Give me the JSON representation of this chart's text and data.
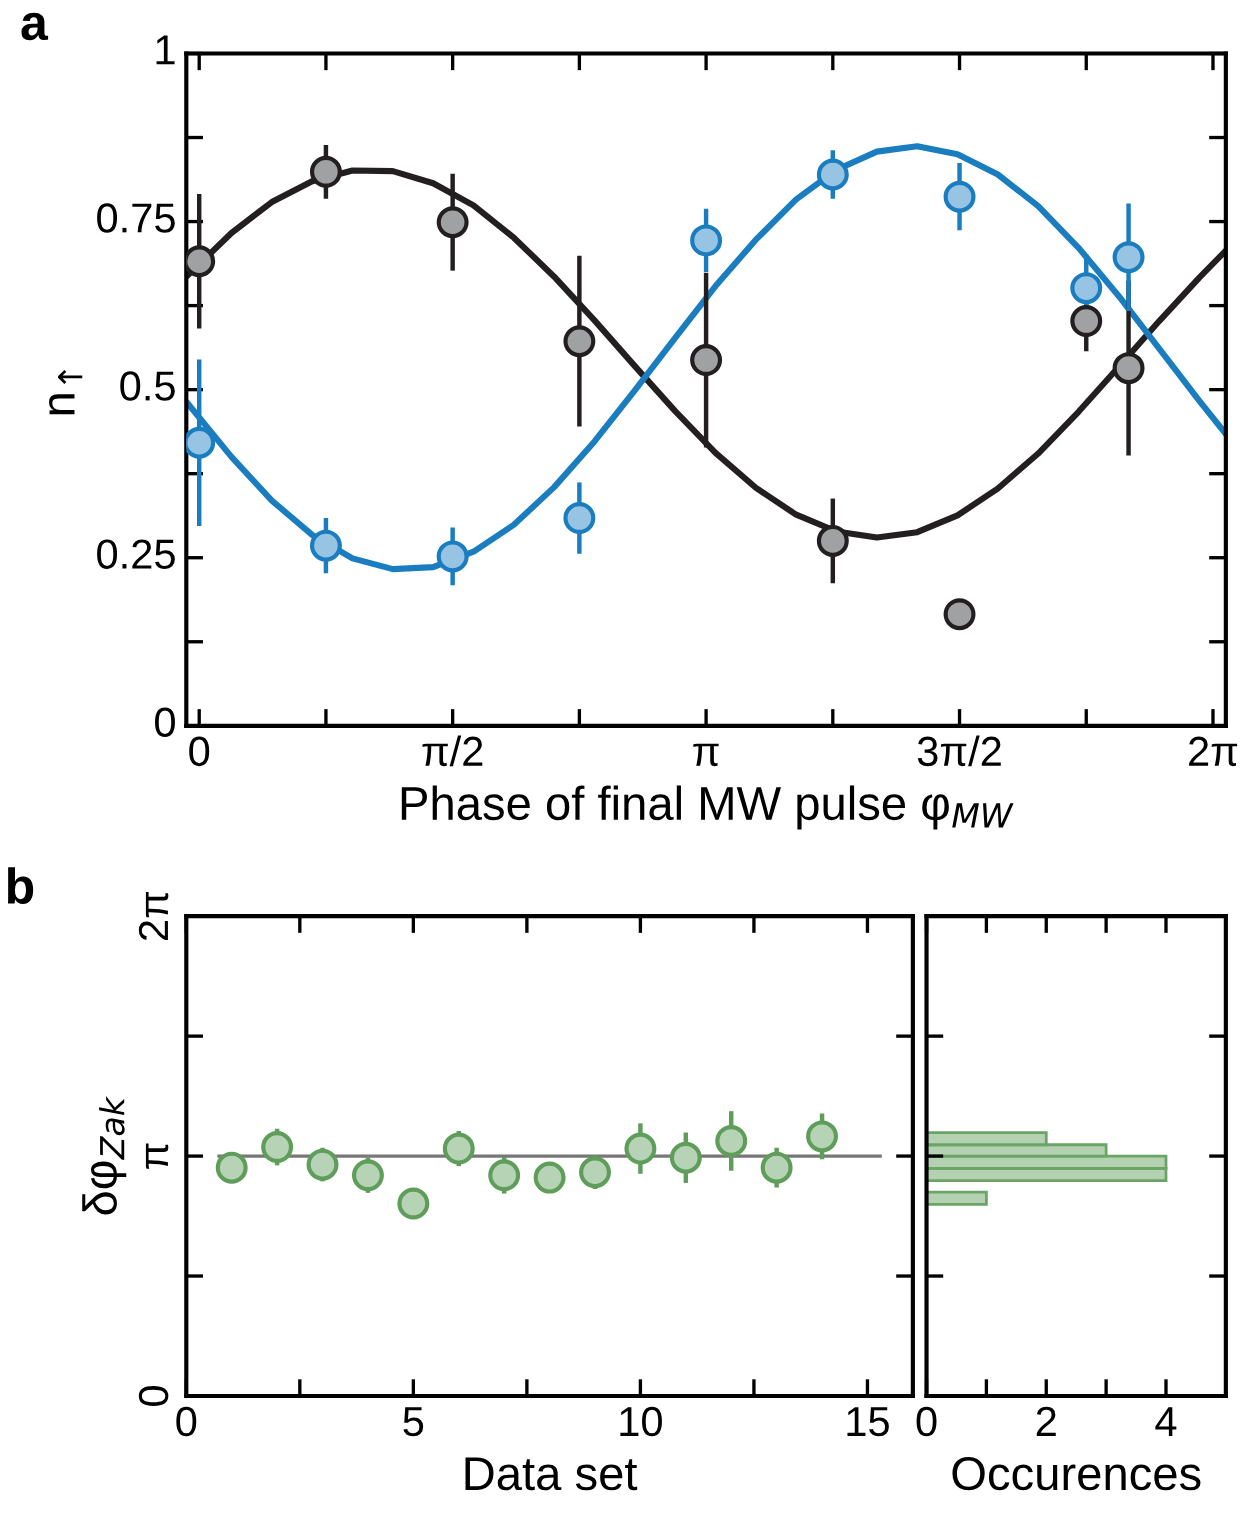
{
  "chart_data": [
    {
      "type": "scatter",
      "title": "a",
      "xlabel": "Phase of final MW pulse φ$_{MW}$",
      "ylabel": "n$_{↑}$",
      "xlim": [
        -0.08,
        6.363
      ],
      "ylim": [
        0,
        1
      ],
      "xticks": [
        0,
        {
          "value": 0.7854,
          "label": null
        },
        {
          "value": 1.5708,
          "label": "π/2"
        },
        {
          "value": 2.3562,
          "label": null
        },
        {
          "value": 3.1416,
          "label": "π"
        },
        {
          "value": 3.927,
          "label": null
        },
        {
          "value": 4.7124,
          "label": "3π/2"
        },
        {
          "value": 5.4978,
          "label": null
        },
        {
          "value": 6.2832,
          "label": "2π"
        }
      ],
      "yticks": [
        0,
        {
          "value": 0.125,
          "label": null
        },
        0.25,
        {
          "value": 0.375,
          "label": null
        },
        0.5,
        {
          "value": 0.625,
          "label": null
        },
        0.75,
        {
          "value": 0.875,
          "label": null
        },
        1
      ],
      "grid": false,
      "series": [
        {
          "type": "line",
          "marker": "none",
          "color": "#231f20",
          "x": [
            -0.08,
            0.2,
            0.45,
            0.7,
            0.95,
            1.2,
            1.45,
            1.7,
            1.95,
            2.2,
            2.45,
            2.7,
            2.95,
            3.2,
            3.45,
            3.7,
            3.95,
            4.2,
            4.45,
            4.7,
            4.95,
            5.2,
            5.45,
            5.7,
            5.95,
            6.2,
            6.36
          ],
          "values": [
            0.668,
            0.733,
            0.779,
            0.81,
            0.826,
            0.825,
            0.807,
            0.774,
            0.726,
            0.668,
            0.603,
            0.535,
            0.468,
            0.406,
            0.354,
            0.314,
            0.289,
            0.28,
            0.288,
            0.313,
            0.353,
            0.405,
            0.467,
            0.534,
            0.602,
            0.667,
            0.706
          ]
        },
        {
          "type": "line",
          "marker": "none",
          "color": "#1a7dc0",
          "x": [
            -0.08,
            0.2,
            0.45,
            0.7,
            0.95,
            1.2,
            1.45,
            1.7,
            1.95,
            2.2,
            2.45,
            2.7,
            2.95,
            3.2,
            3.45,
            3.7,
            3.95,
            4.2,
            4.45,
            4.7,
            4.95,
            5.2,
            5.45,
            5.7,
            5.95,
            6.2,
            6.36
          ],
          "values": [
            0.482,
            0.4,
            0.335,
            0.284,
            0.249,
            0.233,
            0.236,
            0.259,
            0.299,
            0.355,
            0.423,
            0.499,
            0.577,
            0.654,
            0.723,
            0.783,
            0.827,
            0.854,
            0.862,
            0.85,
            0.82,
            0.773,
            0.711,
            0.639,
            0.561,
            0.483,
            0.435
          ]
        },
        {
          "type": "scatter",
          "marker": "circle",
          "color": "#231f20",
          "x": [
            0,
            0.7854,
            1.5708,
            2.3562,
            3.1416,
            3.927,
            4.7124,
            5.4978,
            5.76
          ],
          "values": [
            0.691,
            0.824,
            0.749,
            0.572,
            0.544,
            0.275,
            0.166,
            0.602,
            0.532
          ],
          "errors": [
            0.1,
            0.04,
            0.072,
            0.127,
            0.13,
            0.063,
            0.02,
            0.045,
            0.13
          ]
        },
        {
          "type": "scatter",
          "marker": "circle",
          "color": "#1a7dc0",
          "x": [
            0,
            0.7854,
            1.5708,
            2.3562,
            3.1416,
            3.927,
            4.7124,
            5.4978,
            5.76
          ],
          "values": [
            0.421,
            0.268,
            0.252,
            0.309,
            0.722,
            0.82,
            0.787,
            0.651,
            0.697
          ],
          "errors": [
            0.124,
            0.041,
            0.043,
            0.053,
            0.047,
            0.036,
            0.05,
            0.05,
            0.08
          ]
        }
      ]
    },
    {
      "type": "scatter",
      "title": "b",
      "xlabel": "Data set",
      "ylabel": "δφ$_{Zak}$",
      "xlim": [
        0,
        16
      ],
      "ylim": [
        0,
        6.2832
      ],
      "xticks": [
        0,
        {
          "value": 2.5,
          "label": null
        },
        5,
        {
          "value": 7.5,
          "label": null
        },
        10,
        {
          "value": 12.5,
          "label": null
        },
        15
      ],
      "yticks": [
        0,
        {
          "value": 1.5708,
          "label": null
        },
        {
          "value": 3.1416,
          "label": "π"
        },
        {
          "value": 4.7124,
          "label": null
        },
        {
          "value": 6.2832,
          "label": "2π"
        }
      ],
      "grid": false,
      "marker": "circle",
      "ref_lines": [
        {
          "axis": "y",
          "value": 3.1416,
          "color": "#777777"
        }
      ],
      "series": [
        {
          "color": "#5f9d5a",
          "x": [
            1,
            2,
            3,
            4,
            5,
            6,
            7,
            8,
            9,
            10,
            11,
            12,
            13,
            14
          ],
          "values": [
            2.99,
            3.26,
            3.03,
            2.89,
            2.52,
            3.24,
            2.89,
            2.86,
            2.93,
            3.24,
            3.12,
            3.34,
            2.99,
            3.4
          ],
          "errors": [
            null,
            0.24,
            0.22,
            0.23,
            0.1,
            0.23,
            0.24,
            null,
            0.22,
            0.33,
            0.33,
            0.39,
            0.26,
            0.3
          ]
        }
      ]
    },
    {
      "type": "histogram",
      "orientation": "horizontal",
      "xlabel": "Occurences",
      "color": "#6aa565",
      "bins": [
        2.51,
        2.67,
        2.82,
        2.98,
        3.14,
        3.29,
        3.45
      ],
      "values": [
        1,
        0,
        4,
        4,
        3,
        2
      ],
      "xlim": [
        0,
        5
      ],
      "ylim": [
        0,
        6.2832
      ],
      "xticks": [
        0,
        {
          "value": 1,
          "label": null
        },
        2,
        {
          "value": 3,
          "label": null
        },
        4
      ],
      "yticks": [
        {
          "value": 0,
          "label": null
        },
        {
          "value": 1.5708,
          "label": null
        },
        {
          "value": 3.1416,
          "label": null
        },
        {
          "value": 4.7124,
          "label": null
        },
        {
          "value": 6.2832,
          "label": null
        }
      ],
      "tick_labels": "x",
      "grid": false
    }
  ]
}
